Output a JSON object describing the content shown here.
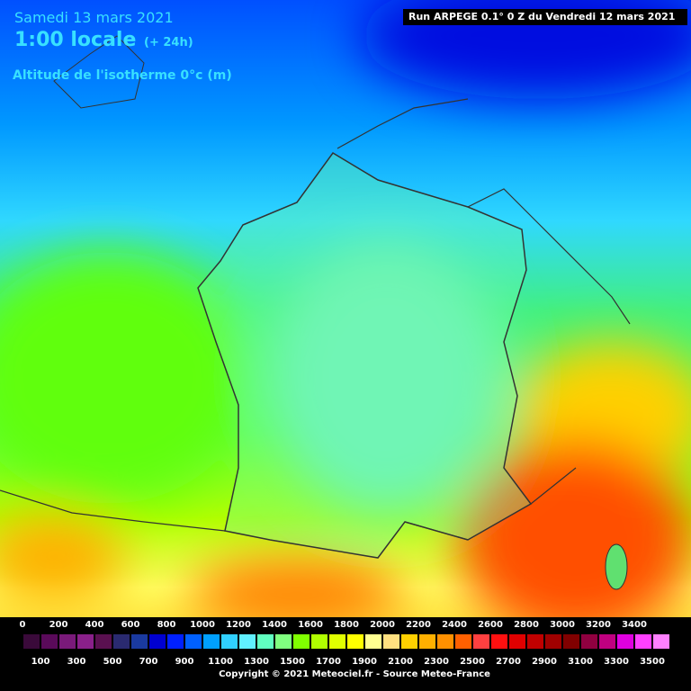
{
  "header": {
    "date": "Samedi 13 mars 2021",
    "time": "1:00 locale",
    "offset": "(+ 24h)",
    "field": "Altitude de l'isotherme 0°c (m)",
    "run": "Run ARPEGE 0.1° 0 Z du Vendredi 12 mars 2021"
  },
  "legend": {
    "top_labels": [
      0,
      200,
      400,
      600,
      800,
      1000,
      1200,
      1400,
      1600,
      1800,
      2000,
      2200,
      2400,
      2600,
      2800,
      3000,
      3200,
      3400
    ],
    "bottom_labels": [
      100,
      300,
      500,
      700,
      900,
      1100,
      1300,
      1500,
      1700,
      1900,
      2100,
      2300,
      2500,
      2700,
      2900,
      3100,
      3300,
      3500
    ],
    "colors": [
      "#3a0a3a",
      "#5a0a5a",
      "#7a1a7a",
      "#8a208a",
      "#5a1050",
      "#2a2a70",
      "#1a3aa0",
      "#0000d0",
      "#0020ff",
      "#0060ff",
      "#00a0ff",
      "#30d0ff",
      "#60f0ff",
      "#60ffc0",
      "#80ff80",
      "#80ff00",
      "#b0ff00",
      "#e0ff00",
      "#ffff00",
      "#ffff90",
      "#ffe080",
      "#ffd000",
      "#ffb000",
      "#ff9000",
      "#ff6000",
      "#ff4040",
      "#ff1010",
      "#e00000",
      "#c00000",
      "#a00000",
      "#800000",
      "#900040",
      "#c00080",
      "#e000e0",
      "#ff40ff",
      "#ff80ff"
    ]
  },
  "footer": "Copyright © 2021 Meteociel.fr - Source Meteo-France"
}
